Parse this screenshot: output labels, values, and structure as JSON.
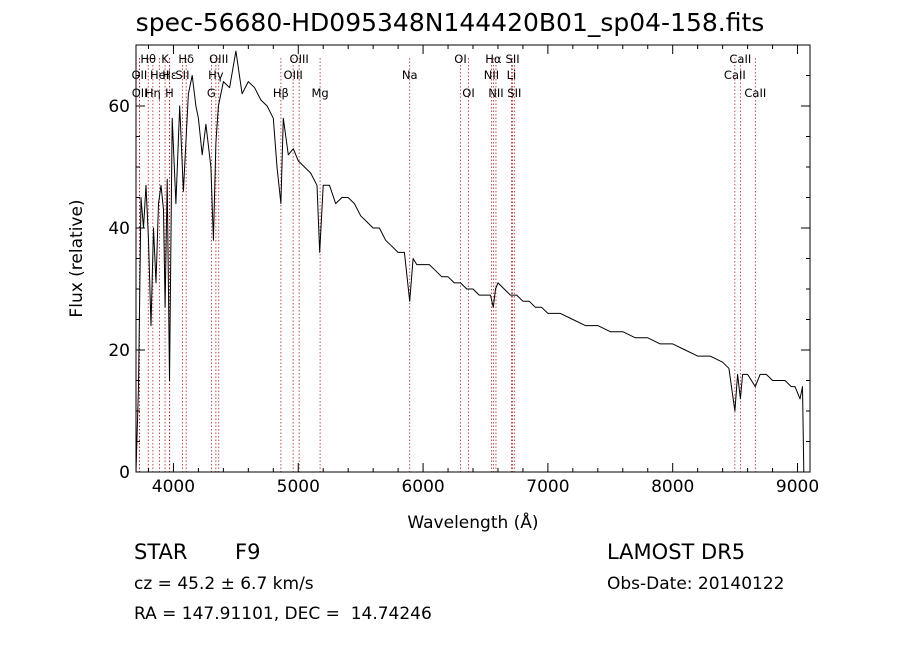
{
  "chart_data": {
    "type": "line",
    "title": "spec-56680-HD095348N144420B01_sp04-158.fits",
    "xlabel": "Wavelength (Å)",
    "ylabel": "Flux (relative)",
    "xlim": [
      3700,
      9100
    ],
    "ylim": [
      0,
      70
    ],
    "xticks": [
      4000,
      5000,
      6000,
      7000,
      8000,
      9000
    ],
    "yticks": [
      0,
      20,
      40,
      60
    ],
    "grid": false,
    "series": [
      {
        "x": [
          3700,
          3720,
          3740,
          3760,
          3780,
          3800,
          3820,
          3840,
          3860,
          3880,
          3900,
          3920,
          3933,
          3950,
          3968,
          3990,
          4020,
          4050,
          4080,
          4102,
          4120,
          4150,
          4180,
          4200,
          4230,
          4260,
          4300,
          4320,
          4340,
          4360,
          4400,
          4450,
          4500,
          4550,
          4600,
          4650,
          4700,
          4750,
          4800,
          4830,
          4861,
          4880,
          4920,
          4960,
          5000,
          5050,
          5100,
          5150,
          5172,
          5200,
          5250,
          5300,
          5350,
          5400,
          5450,
          5500,
          5550,
          5600,
          5650,
          5700,
          5750,
          5800,
          5850,
          5893,
          5920,
          5950,
          6000,
          6050,
          6100,
          6150,
          6200,
          6250,
          6300,
          6350,
          6400,
          6450,
          6500,
          6540,
          6563,
          6580,
          6600,
          6650,
          6700,
          6750,
          6800,
          6850,
          6900,
          6950,
          7000,
          7100,
          7200,
          7300,
          7400,
          7500,
          7600,
          7700,
          7800,
          7900,
          8000,
          8100,
          8200,
          8300,
          8400,
          8450,
          8498,
          8520,
          8542,
          8560,
          8600,
          8662,
          8700,
          8750,
          8800,
          8850,
          8900,
          8950,
          8980,
          9000,
          9020,
          9040,
          9050
        ],
        "y": [
          0,
          14,
          45,
          40,
          47,
          38,
          24,
          40,
          31,
          44,
          47,
          43,
          27,
          48,
          15,
          58,
          44,
          60,
          46,
          55,
          62,
          65,
          60,
          58,
          52,
          57,
          50,
          38,
          54,
          60,
          64,
          63,
          69,
          62,
          64,
          63,
          61,
          60,
          58,
          50,
          44,
          58,
          52,
          53,
          51,
          50,
          49,
          47,
          36,
          47,
          47,
          44,
          45,
          45,
          44,
          42,
          41,
          40,
          40,
          38,
          37,
          36,
          36,
          28,
          35,
          34,
          34,
          34,
          33,
          32,
          32,
          31,
          31,
          30,
          30,
          29,
          29,
          29,
          27,
          30,
          31,
          30,
          29,
          29,
          28,
          28,
          27,
          27,
          26,
          26,
          25,
          24,
          24,
          23,
          23,
          22,
          22,
          21,
          21,
          20,
          19,
          19,
          18,
          17,
          10,
          16,
          12,
          16,
          16,
          14,
          16,
          16,
          15,
          15,
          15,
          14,
          14,
          13,
          12,
          14,
          0
        ]
      }
    ],
    "line_markers": [
      {
        "label": "Hθ",
        "row": 1,
        "lines": [
          3798
        ]
      },
      {
        "label": "OII",
        "row": 2,
        "lines": [
          3727
        ]
      },
      {
        "label": "OII",
        "row": 3,
        "lines": [
          3729
        ]
      },
      {
        "label": "Hη",
        "row": 3,
        "lines": [
          3835
        ]
      },
      {
        "label": "K",
        "row": 1,
        "lines": [
          3933
        ]
      },
      {
        "label": "HeI",
        "row": 2,
        "lines": [
          3889
        ]
      },
      {
        "label": "H",
        "row": 3,
        "lines": [
          3968
        ]
      },
      {
        "label": "Hδ",
        "row": 1,
        "lines": [
          4102
        ]
      },
      {
        "label": "Hε",
        "row": 2,
        "lines": [
          3970
        ]
      },
      {
        "label": "SII",
        "row": 2,
        "lines": [
          4072
        ]
      },
      {
        "label": "OIII",
        "row": 1,
        "lines": [
          4363
        ]
      },
      {
        "label": "Hγ",
        "row": 2,
        "lines": [
          4340
        ]
      },
      {
        "label": "G",
        "row": 3,
        "lines": [
          4304
        ]
      },
      {
        "label": "OIII",
        "row": 1,
        "lines": [
          5007
        ]
      },
      {
        "label": "OIII",
        "row": 2,
        "lines": [
          4959
        ]
      },
      {
        "label": "Hβ",
        "row": 3,
        "lines": [
          4861
        ]
      },
      {
        "label": "Mg",
        "row": 3,
        "lines": [
          5175
        ]
      },
      {
        "label": "Na",
        "row": 2,
        "lines": [
          5893
        ]
      },
      {
        "label": "OI",
        "row": 1,
        "lines": [
          6300
        ]
      },
      {
        "label": "OI",
        "row": 3,
        "lines": [
          6364
        ]
      },
      {
        "label": "Hα",
        "row": 1,
        "lines": [
          6563
        ]
      },
      {
        "label": "NII",
        "row": 2,
        "lines": [
          6548
        ]
      },
      {
        "label": "NII",
        "row": 3,
        "lines": [
          6584
        ]
      },
      {
        "label": "SII",
        "row": 1,
        "lines": [
          6717
        ]
      },
      {
        "label": "Li",
        "row": 2,
        "lines": [
          6708
        ]
      },
      {
        "label": "SII",
        "row": 3,
        "lines": [
          6731
        ]
      },
      {
        "label": "CaII",
        "row": 1,
        "lines": [
          8542
        ]
      },
      {
        "label": "CaII",
        "row": 2,
        "lines": [
          8498
        ]
      },
      {
        "label": "CaII",
        "row": 3,
        "lines": [
          8662
        ]
      }
    ],
    "colors": {
      "spectrum": "#000000",
      "markers": "#b22222",
      "axes": "#000000"
    }
  },
  "info": {
    "class_label": "STAR",
    "subclass": "F9",
    "survey": "LAMOST DR5",
    "redshift_line": "cz = 45.2 ± 6.7 km/s",
    "obs_date_line": "Obs-Date: 20140122",
    "coords_line": "RA = 147.91101, DEC =  14.74246"
  }
}
